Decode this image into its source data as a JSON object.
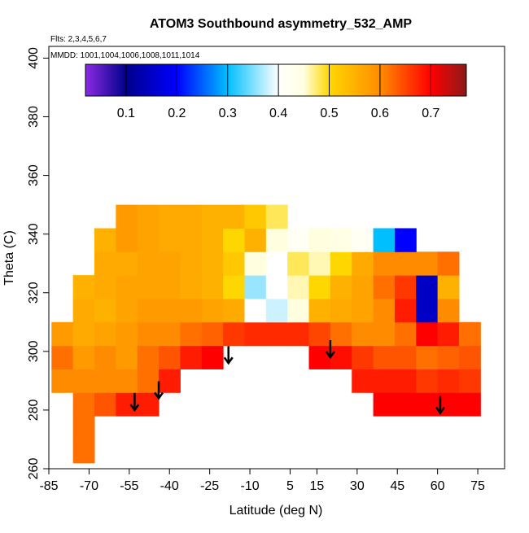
{
  "chart_data": {
    "type": "heatmap",
    "title": "ATOM3 Southbound asymmetry_532_AMP",
    "subtitle": "Flts: 2,3,4,5,6,7",
    "annotation": "MMDD: 1001,1004,1006,1008,1011,1014",
    "x_label": "Latitude (deg N)",
    "y_label": "Theta (C)",
    "xlim": [
      -85,
      85
    ],
    "ylim": [
      260,
      404
    ],
    "xticks": [
      -85,
      -70,
      -55,
      -40,
      -25,
      -10,
      5,
      15,
      30,
      45,
      60,
      75
    ],
    "yticks": [
      260,
      280,
      300,
      320,
      340,
      360,
      380,
      400
    ],
    "x": [
      -80,
      -72,
      -64,
      -56,
      -48,
      -40,
      -32,
      -24,
      -16,
      -8,
      0,
      8,
      16,
      24,
      32,
      40,
      48,
      56,
      64,
      72
    ],
    "y": [
      266,
      274,
      282,
      290,
      298,
      306,
      314,
      322,
      330,
      338,
      346
    ],
    "z": [
      [
        null,
        0.62,
        null,
        null,
        null,
        null,
        null,
        null,
        null,
        null,
        null,
        null,
        null,
        null,
        null,
        null,
        null,
        null,
        null,
        null
      ],
      [
        null,
        0.62,
        null,
        null,
        null,
        null,
        null,
        null,
        null,
        null,
        null,
        null,
        null,
        null,
        null,
        null,
        null,
        null,
        null,
        null
      ],
      [
        null,
        0.62,
        0.64,
        0.68,
        0.68,
        null,
        null,
        null,
        null,
        null,
        null,
        null,
        null,
        null,
        null,
        0.7,
        0.7,
        0.7,
        0.7,
        0.7
      ],
      [
        0.6,
        0.6,
        0.6,
        0.6,
        0.62,
        0.68,
        null,
        null,
        null,
        null,
        null,
        null,
        null,
        null,
        0.68,
        0.68,
        0.68,
        0.66,
        0.67,
        0.66
      ],
      [
        0.62,
        0.58,
        0.6,
        0.58,
        0.62,
        0.64,
        0.68,
        0.7,
        null,
        null,
        null,
        null,
        0.7,
        0.69,
        0.66,
        0.64,
        0.64,
        0.62,
        0.63,
        0.64
      ],
      [
        0.58,
        0.56,
        0.57,
        0.58,
        0.6,
        0.6,
        0.62,
        0.63,
        0.66,
        0.67,
        0.67,
        0.67,
        0.65,
        0.62,
        0.6,
        0.6,
        0.62,
        0.7,
        0.68,
        0.62
      ],
      [
        null,
        0.56,
        0.55,
        0.57,
        0.58,
        0.58,
        0.58,
        0.57,
        0.56,
        0.4,
        0.38,
        0.45,
        0.55,
        0.56,
        0.57,
        0.6,
        0.68,
        0.15,
        0.6,
        null
      ],
      [
        null,
        0.55,
        0.56,
        0.57,
        0.57,
        0.57,
        0.56,
        0.55,
        0.5,
        0.36,
        0.4,
        0.46,
        0.5,
        0.55,
        0.57,
        0.62,
        0.66,
        0.15,
        0.55,
        null
      ],
      [
        null,
        null,
        0.56,
        0.56,
        0.57,
        0.57,
        0.56,
        0.55,
        0.52,
        0.45,
        0.4,
        0.48,
        0.46,
        0.5,
        0.56,
        0.6,
        0.6,
        0.6,
        0.62,
        null
      ],
      [
        null,
        null,
        0.55,
        0.58,
        0.57,
        0.56,
        0.56,
        0.55,
        0.5,
        0.55,
        0.45,
        0.42,
        0.45,
        0.44,
        0.42,
        0.3,
        0.2,
        null,
        null,
        null
      ],
      [
        null,
        null,
        null,
        0.58,
        0.57,
        0.56,
        0.56,
        0.55,
        0.55,
        0.52,
        0.48,
        null,
        null,
        null,
        null,
        null,
        null,
        null,
        null,
        null
      ]
    ],
    "zlim": [
      0.02,
      0.77
    ],
    "zticks": [
      0.1,
      0.2,
      0.3,
      0.4,
      0.5,
      0.6,
      0.7
    ],
    "colorscale": [
      [
        0.02,
        "#8a2be2"
      ],
      [
        0.1,
        "#00008b"
      ],
      [
        0.2,
        "#0000ff"
      ],
      [
        0.3,
        "#00bfff"
      ],
      [
        0.4,
        "#ffffff"
      ],
      [
        0.45,
        "#ffffe0"
      ],
      [
        0.5,
        "#ffd700"
      ],
      [
        0.6,
        "#ff8c00"
      ],
      [
        0.7,
        "#ff0000"
      ],
      [
        0.77,
        "#8b1a1a"
      ]
    ],
    "arrows": {
      "x": [
        -53,
        -44,
        -18,
        20,
        61
      ],
      "y": [
        280,
        284,
        296,
        298,
        279
      ]
    }
  }
}
